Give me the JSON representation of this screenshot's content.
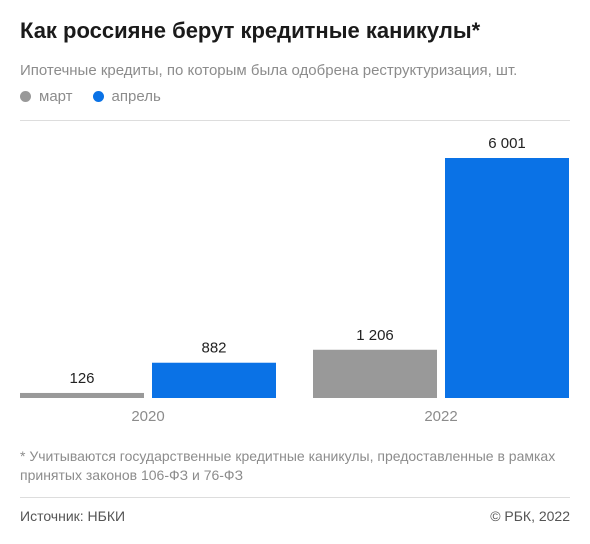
{
  "header": {
    "title": "Как россияне берут кредитные каникулы*",
    "subtitle": "Ипотечные кредиты, по которым была одобрена реструктуризация, шт."
  },
  "legend": [
    {
      "label": "март",
      "color": "#999999"
    },
    {
      "label": "апрель",
      "color": "#0a72e6"
    }
  ],
  "chart_data": {
    "type": "bar",
    "title": "Как россияне берут кредитные каникулы*",
    "subtitle": "Ипотечные кредиты, по которым была одобрена реструктуризация, шт.",
    "categories": [
      "2020",
      "2022"
    ],
    "series": [
      {
        "name": "март",
        "color": "#999999",
        "values": [
          126,
          1206
        ],
        "labels": [
          "126",
          "1 206"
        ]
      },
      {
        "name": "апрель",
        "color": "#0a72e6",
        "values": [
          882,
          6001
        ],
        "labels": [
          "882",
          "6 001"
        ]
      }
    ],
    "ylim": [
      0,
      6001
    ],
    "grid": false,
    "legend_position": "top-left"
  },
  "footnote": "* Учитываются государственные кредитные каникулы, предоставленные в рамках принятых законов 106-ФЗ и 76-ФЗ",
  "footer": {
    "source": "Источник: НБКИ",
    "credit": "© РБК, 2022"
  }
}
